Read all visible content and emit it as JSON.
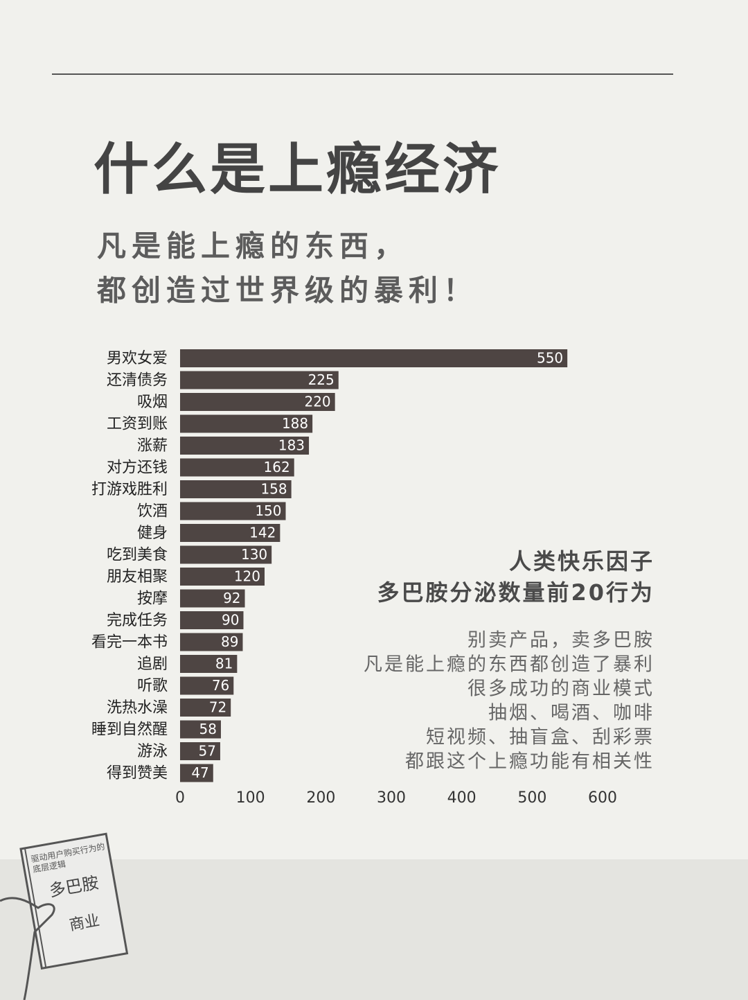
{
  "header": {
    "title": "什么是上瘾经济",
    "subtitle": [
      "凡是能上瘾的东西，",
      "都创造过世界级的暴利！"
    ]
  },
  "chart_data": {
    "type": "bar",
    "orientation": "horizontal",
    "categories": [
      "男欢女爱",
      "还清债务",
      "吸烟",
      "工资到账",
      "涨薪",
      "对方还钱",
      "打游戏胜利",
      "饮酒",
      "健身",
      "吃到美食",
      "朋友相聚",
      "按摩",
      "完成任务",
      "看完一本书",
      "追剧",
      "听歌",
      "洗热水澡",
      "睡到自然醒",
      "游泳",
      "得到赞美"
    ],
    "values": [
      550,
      225,
      220,
      188,
      183,
      162,
      158,
      150,
      142,
      130,
      120,
      92,
      90,
      89,
      81,
      76,
      72,
      58,
      57,
      47
    ],
    "color": "#4e4543",
    "xlim": [
      0,
      600
    ],
    "xticks": [
      0,
      100,
      200,
      300,
      400,
      500,
      600
    ],
    "annotation_title": [
      "人类快乐因子",
      "多巴胺分泌数量前20行为"
    ],
    "annotation_lines": [
      "别卖产品，卖多巴胺",
      "凡是能上瘾的东西都创造了暴利",
      "很多成功的商业模式",
      "抽烟、喝酒、咖啡",
      "短视频、抽盲盒、刮彩票",
      "都跟这个上瘾功能有相关性"
    ]
  },
  "book": {
    "caption": [
      "驱动用户购买行为的",
      "底层逻辑"
    ],
    "title": "多巴胺",
    "subtitle": "商业"
  }
}
